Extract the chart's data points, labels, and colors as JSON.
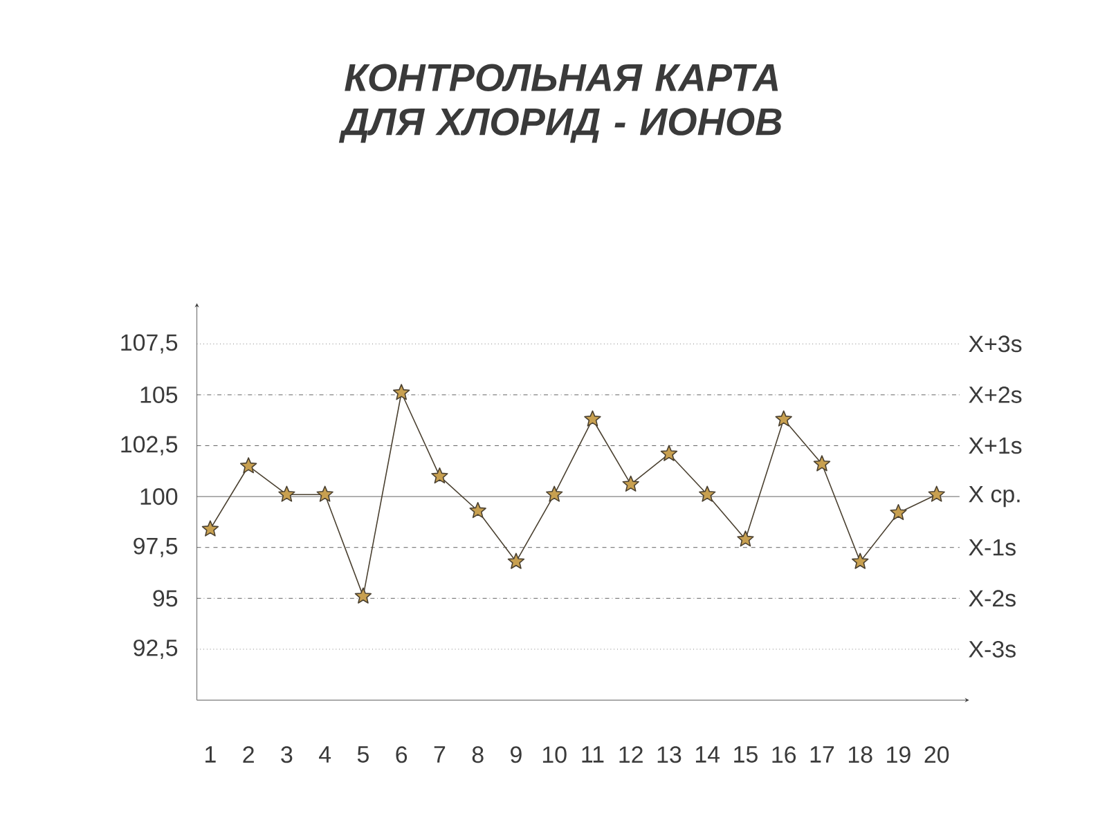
{
  "chart_data": {
    "type": "line",
    "title": "КОНТРОЛЬНАЯ КАРТА ДЛЯ ХЛОРИД - ИОНОВ",
    "categories": [
      "1",
      "2",
      "3",
      "4",
      "5",
      "6",
      "7",
      "8",
      "9",
      "10",
      "11",
      "12",
      "13",
      "14",
      "15",
      "16",
      "17",
      "18",
      "19",
      "20"
    ],
    "series": [
      {
        "color": "#4a4030",
        "values": [
          98.4,
          101.5,
          100.1,
          100.1,
          95.1,
          105.1,
          101.0,
          99.3,
          96.8,
          100.1,
          103.8,
          100.6,
          102.1,
          100.1,
          97.9,
          103.8,
          101.6,
          96.8,
          99.2,
          100.1
        ]
      }
    ],
    "marker": "star",
    "line_style": "solid",
    "ylim": [
      90,
      109.5
    ],
    "yticks": [
      {
        "value": 92.5,
        "label": "92,5"
      },
      {
        "value": 95,
        "label": "95"
      },
      {
        "value": 97.5,
        "label": "97,5"
      },
      {
        "value": 100,
        "label": "100"
      },
      {
        "value": 102.5,
        "label": "102,5"
      },
      {
        "value": 105,
        "label": "105"
      },
      {
        "value": 107.5,
        "label": "107,5"
      }
    ],
    "ref_lines": [
      {
        "axis": "y",
        "value": 107.5,
        "label": "X+3s",
        "line_style": "dotted"
      },
      {
        "axis": "y",
        "value": 105,
        "label": "X+2s",
        "line_style": "dashdot"
      },
      {
        "axis": "y",
        "value": 102.5,
        "label": "X+1s",
        "line_style": "dashed"
      },
      {
        "axis": "y",
        "value": 100,
        "label": "X ср.",
        "line_style": "solid"
      },
      {
        "axis": "y",
        "value": 97.5,
        "label": "X-1s",
        "line_style": "dashed"
      },
      {
        "axis": "y",
        "value": 95,
        "label": "X-2s",
        "line_style": "dashdot"
      },
      {
        "axis": "y",
        "value": 92.5,
        "label": "X-3s",
        "line_style": "dotted"
      }
    ]
  }
}
